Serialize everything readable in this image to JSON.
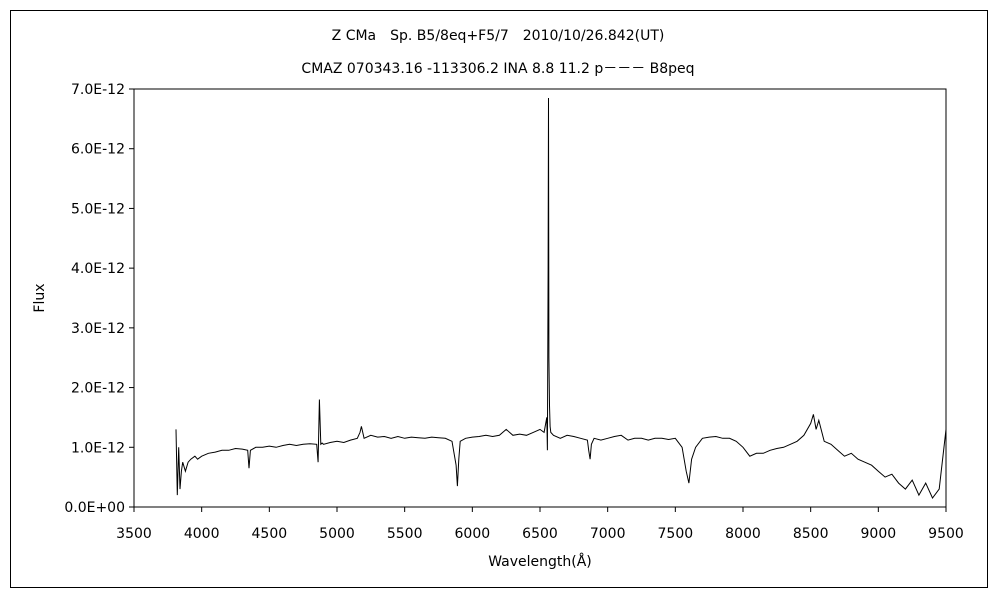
{
  "chart_data": {
    "type": "line",
    "title": "Z CMa　Sp. B5/8eq+F5/7　2010/10/26.842(UT)",
    "subtitle": "CMAZ 070343.16 -113306.2 INA 8.8 11.2 p－－－ B8peq",
    "xlabel": "Wavelength(Å)",
    "ylabel": "Flux",
    "xlim": [
      3500,
      9500
    ],
    "ylim": [
      0,
      7e-12
    ],
    "xticks": [
      "3500",
      "4000",
      "4500",
      "5000",
      "5500",
      "6000",
      "6500",
      "7000",
      "7500",
      "8000",
      "8500",
      "9000",
      "9500"
    ],
    "yticks": [
      "0.0E+00",
      "1.0E-12",
      "2.0E-12",
      "3.0E-12",
      "4.0E-12",
      "5.0E-12",
      "6.0E-12",
      "7.0E-12"
    ],
    "grid": false,
    "legend": "none",
    "line_color": "#000000",
    "series": [
      {
        "x": [
          3810,
          3820,
          3830,
          3840,
          3850,
          3860,
          3880,
          3900,
          3920,
          3950,
          3970,
          4000,
          4050,
          4100,
          4150,
          4200,
          4250,
          4300,
          4340,
          4350,
          4360,
          4400,
          4450,
          4500,
          4550,
          4600,
          4650,
          4700,
          4750,
          4800,
          4850,
          4860,
          4870,
          4880,
          4890,
          4900,
          4950,
          5000,
          5050,
          5100,
          5150,
          5170,
          5180,
          5200,
          5250,
          5300,
          5350,
          5400,
          5450,
          5500,
          5550,
          5600,
          5650,
          5700,
          5750,
          5800,
          5850,
          5880,
          5890,
          5900,
          5910,
          5950,
          6000,
          6050,
          6100,
          6150,
          6200,
          6250,
          6300,
          6350,
          6400,
          6450,
          6500,
          6530,
          6550,
          6555,
          6560,
          6563,
          6566,
          6570,
          6575,
          6580,
          6600,
          6650,
          6700,
          6750,
          6800,
          6850,
          6860,
          6870,
          6880,
          6900,
          6950,
          7000,
          7050,
          7100,
          7150,
          7200,
          7250,
          7300,
          7350,
          7400,
          7450,
          7500,
          7550,
          7580,
          7600,
          7620,
          7650,
          7700,
          7750,
          7800,
          7850,
          7900,
          7950,
          8000,
          8050,
          8100,
          8150,
          8200,
          8250,
          8300,
          8350,
          8400,
          8450,
          8500,
          8520,
          8540,
          8560,
          8600,
          8650,
          8700,
          8750,
          8800,
          8850,
          8900,
          8950,
          9000,
          9050,
          9100,
          9150,
          9200,
          9250,
          9300,
          9350,
          9400,
          9450,
          9500
        ],
        "y": [
          1.3e-12,
          2e-13,
          1e-12,
          3e-13,
          6e-13,
          7.5e-13,
          6e-13,
          7.5e-13,
          8e-13,
          8.5e-13,
          8e-13,
          8.5e-13,
          9e-13,
          9.2e-13,
          9.5e-13,
          9.5e-13,
          9.8e-13,
          9.7e-13,
          9.5e-13,
          6.5e-13,
          9.5e-13,
          1e-12,
          1e-12,
          1.02e-12,
          1e-12,
          1.03e-12,
          1.05e-12,
          1.03e-12,
          1.05e-12,
          1.06e-12,
          1.05e-12,
          7.5e-13,
          1.8e-12,
          1.05e-12,
          1.07e-12,
          1.05e-12,
          1.08e-12,
          1.1e-12,
          1.08e-12,
          1.12e-12,
          1.15e-12,
          1.25e-12,
          1.35e-12,
          1.15e-12,
          1.2e-12,
          1.17e-12,
          1.18e-12,
          1.15e-12,
          1.18e-12,
          1.15e-12,
          1.17e-12,
          1.16e-12,
          1.15e-12,
          1.17e-12,
          1.16e-12,
          1.15e-12,
          1.1e-12,
          7e-13,
          3.5e-13,
          8e-13,
          1.1e-12,
          1.15e-12,
          1.17e-12,
          1.18e-12,
          1.2e-12,
          1.18e-12,
          1.2e-12,
          1.3e-12,
          1.2e-12,
          1.22e-12,
          1.2e-12,
          1.25e-12,
          1.3e-12,
          1.25e-12,
          1.5e-12,
          9.5e-13,
          3.95e-12,
          6.85e-12,
          2.5e-12,
          1.7e-12,
          1.35e-12,
          1.25e-12,
          1.2e-12,
          1.15e-12,
          1.2e-12,
          1.18e-12,
          1.15e-12,
          1.12e-12,
          9.5e-13,
          8e-13,
          1.05e-12,
          1.15e-12,
          1.12e-12,
          1.15e-12,
          1.18e-12,
          1.2e-12,
          1.12e-12,
          1.15e-12,
          1.15e-12,
          1.12e-12,
          1.15e-12,
          1.15e-12,
          1.13e-12,
          1.15e-12,
          1e-12,
          6e-13,
          4e-13,
          8e-13,
          1e-12,
          1.15e-12,
          1.17e-12,
          1.18e-12,
          1.15e-12,
          1.15e-12,
          1.1e-12,
          1e-12,
          8.5e-13,
          9e-13,
          9e-13,
          9.5e-13,
          9.8e-13,
          1e-12,
          1.05e-12,
          1.1e-12,
          1.2e-12,
          1.4e-12,
          1.55e-12,
          1.3e-12,
          1.45e-12,
          1.1e-12,
          1.05e-12,
          9.5e-13,
          8.5e-13,
          9e-13,
          8e-13,
          7.5e-13,
          7e-13,
          6e-13,
          5e-13,
          5.5e-13,
          4e-13,
          3e-13,
          4.5e-13,
          2e-13,
          4e-13,
          1.5e-13,
          3e-13,
          1.3e-12
        ]
      }
    ]
  }
}
